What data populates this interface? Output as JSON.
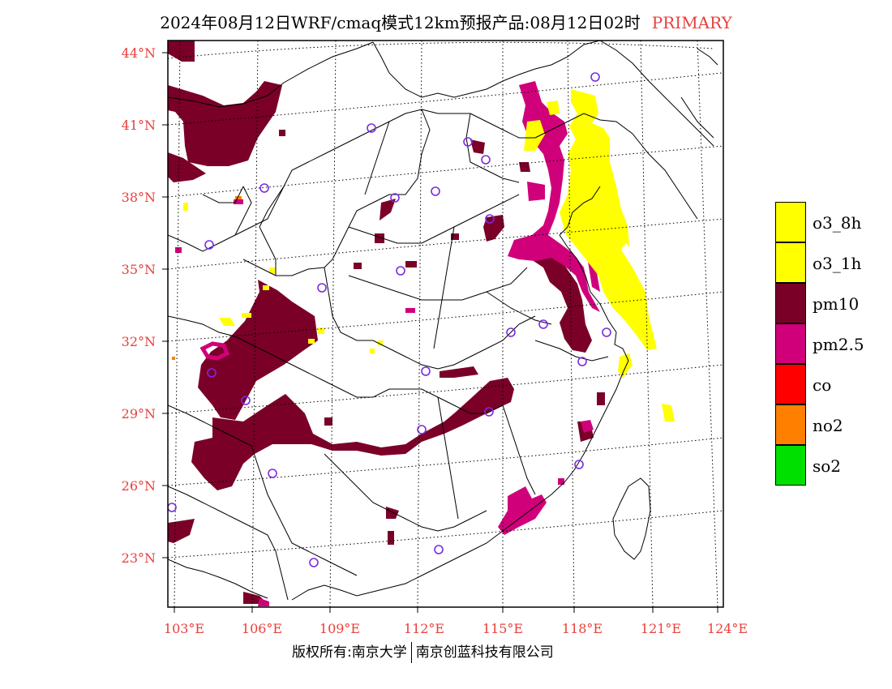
{
  "title": {
    "main": "2024年08月12日WRF/cmaq模式12km预报产品:08月12日02时",
    "tag": "PRIMARY"
  },
  "lat_labels": [
    "44°N",
    "41°N",
    "38°N",
    "35°N",
    "32°N",
    "29°N",
    "26°N",
    "23°N"
  ],
  "lon_labels": [
    "103°E",
    "106°E",
    "109°E",
    "112°E",
    "115°E",
    "118°E",
    "121°E",
    "124°E"
  ],
  "legend": [
    {
      "label": "o3_8h",
      "color": "#ffff00"
    },
    {
      "label": "o3_1h",
      "color": "#ffff00"
    },
    {
      "label": "pm10",
      "color": "#7a0028"
    },
    {
      "label": "pm2.5",
      "color": "#d0007a"
    },
    {
      "label": "co",
      "color": "#ff0000"
    },
    {
      "label": "no2",
      "color": "#ff8000"
    },
    {
      "label": "so2",
      "color": "#00e000"
    }
  ],
  "copyright": {
    "left": "版权所有:南京大学",
    "right": "南京创蓝科技有限公司"
  }
}
